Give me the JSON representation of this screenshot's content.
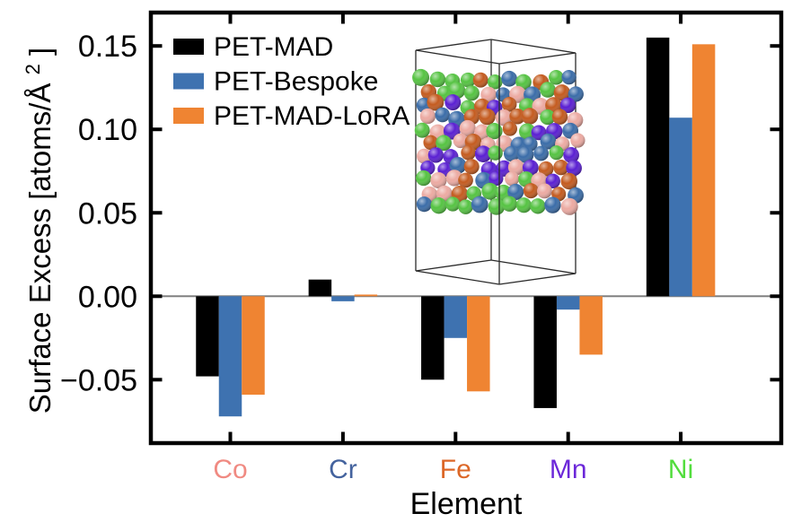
{
  "figure": {
    "background": "#ffffff"
  },
  "chart_data": {
    "type": "bar",
    "title": "",
    "xlabel": "Element",
    "ylabel": "Surface Excess [atoms/Å²]",
    "ylabel_parts": {
      "prefix": "Surface Excess [atoms/Å",
      "sup": "2",
      "suffix": "]"
    },
    "categories": [
      "Co",
      "Cr",
      "Fe",
      "Mn",
      "Ni"
    ],
    "category_colors": {
      "Co": "#f08a82",
      "Cr": "#44639e",
      "Fe": "#dc6727",
      "Mn": "#6c28d9",
      "Ni": "#52dd3d"
    },
    "series": [
      {
        "name": "PET-MAD",
        "color": "#000000",
        "values": [
          -0.048,
          0.01,
          -0.05,
          -0.067,
          0.155
        ]
      },
      {
        "name": "PET-Bespoke",
        "color": "#3e72b0",
        "values": [
          -0.072,
          -0.003,
          -0.025,
          -0.008,
          0.107
        ]
      },
      {
        "name": "PET-MAD-LoRA",
        "color": "#ef8432",
        "values": [
          -0.059,
          0.001,
          -0.057,
          -0.035,
          0.151
        ]
      }
    ],
    "ylim": [
      -0.088,
      0.17
    ],
    "yticks": [
      {
        "value": 0.15,
        "label": "0.15"
      },
      {
        "value": 0.1,
        "label": "0.10"
      },
      {
        "value": 0.05,
        "label": "0.05"
      },
      {
        "value": 0.0,
        "label": "0.00"
      },
      {
        "value": -0.05,
        "label": "−0.05"
      }
    ],
    "zero_line_color": "#808080",
    "grid": false,
    "legend": {
      "position": "upper left",
      "entries": [
        "PET-MAD",
        "PET-Bespoke",
        "PET-MAD-LoRA"
      ]
    }
  },
  "inset": {
    "sphere_colors": {
      "Co": "#ecaaa2",
      "Cr": "#3a6ca8",
      "Fe": "#c45b1f",
      "Mn": "#5a1fd2",
      "Ni": "#55c342"
    },
    "box_color": "#2b2b2b"
  }
}
